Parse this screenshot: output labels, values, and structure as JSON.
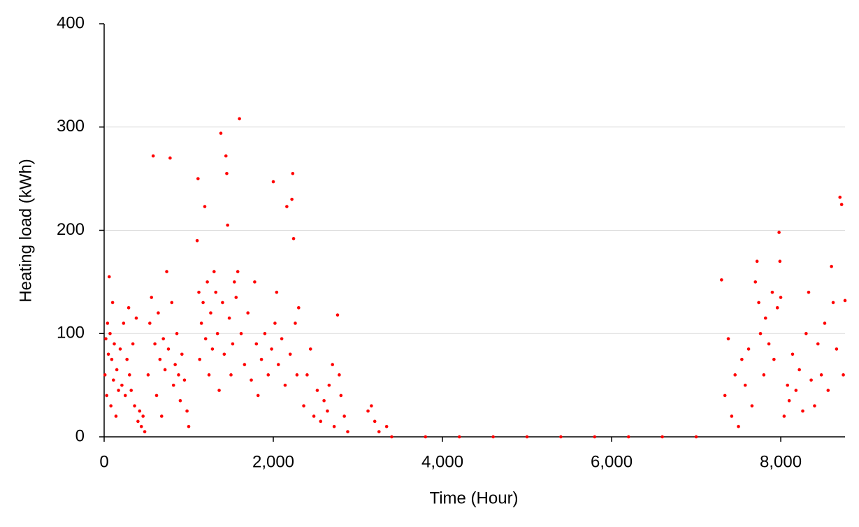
{
  "chart_data": {
    "type": "scatter",
    "x_label": "Time (Hour)",
    "y_label": "Heating load (kWh)",
    "xlim": [
      0,
      8760
    ],
    "xticks": [
      0,
      {
        "value": 2000,
        "label": "2,000"
      },
      {
        "value": 4000,
        "label": "4,000"
      },
      {
        "value": 6000,
        "label": "6,000"
      },
      {
        "value": 8000,
        "label": "8,000"
      }
    ],
    "ylim": [
      0,
      400
    ],
    "yticks": [
      0,
      100,
      200,
      300,
      400
    ],
    "grid": true,
    "color": "#ff0000",
    "x": [
      10,
      20,
      30,
      40,
      50,
      60,
      70,
      80,
      90,
      100,
      110,
      120,
      140,
      150,
      170,
      190,
      210,
      230,
      250,
      270,
      290,
      300,
      320,
      340,
      360,
      380,
      400,
      420,
      440,
      460,
      480,
      520,
      540,
      560,
      580,
      600,
      620,
      640,
      660,
      680,
      700,
      720,
      740,
      760,
      780,
      800,
      820,
      840,
      860,
      880,
      900,
      920,
      950,
      980,
      1000,
      1100,
      1110,
      1120,
      1130,
      1150,
      1170,
      1190,
      1200,
      1220,
      1240,
      1260,
      1280,
      1300,
      1320,
      1340,
      1360,
      1380,
      1400,
      1420,
      1440,
      1450,
      1460,
      1480,
      1500,
      1520,
      1540,
      1560,
      1580,
      1600,
      1620,
      1660,
      1700,
      1740,
      1780,
      1800,
      1820,
      1860,
      1900,
      1940,
      1980,
      2000,
      2020,
      2040,
      2060,
      2100,
      2140,
      2160,
      2200,
      2220,
      2230,
      2240,
      2260,
      2280,
      2300,
      2360,
      2400,
      2440,
      2480,
      2520,
      2560,
      2600,
      2640,
      2660,
      2700,
      2720,
      2760,
      2780,
      2800,
      2840,
      2880,
      3120,
      3160,
      3200,
      3250,
      3340,
      3400,
      3800,
      4200,
      4600,
      5000,
      5400,
      5800,
      6200,
      6600,
      7000,
      7300,
      7340,
      7380,
      7420,
      7460,
      7500,
      7540,
      7580,
      7620,
      7660,
      7700,
      7720,
      7740,
      7760,
      7800,
      7820,
      7860,
      7900,
      7920,
      7960,
      7980,
      7990,
      8000,
      8040,
      8080,
      8100,
      8140,
      8180,
      8220,
      8260,
      8300,
      8330,
      8360,
      8400,
      8440,
      8480,
      8520,
      8560,
      8600,
      8620,
      8660,
      8700,
      8720,
      8740,
      8760
    ],
    "values": [
      60,
      95,
      40,
      110,
      80,
      155,
      100,
      30,
      75,
      130,
      55,
      90,
      20,
      65,
      45,
      85,
      50,
      110,
      40,
      75,
      125,
      60,
      45,
      90,
      30,
      115,
      15,
      25,
      10,
      20,
      5,
      60,
      110,
      135,
      272,
      90,
      40,
      120,
      75,
      20,
      95,
      65,
      160,
      85,
      270,
      130,
      50,
      70,
      100,
      60,
      35,
      80,
      55,
      25,
      10,
      190,
      250,
      140,
      75,
      110,
      130,
      223,
      95,
      150,
      60,
      120,
      85,
      160,
      140,
      100,
      45,
      294,
      130,
      80,
      272,
      255,
      205,
      115,
      60,
      90,
      150,
      135,
      160,
      308,
      100,
      70,
      120,
      55,
      150,
      90,
      40,
      75,
      100,
      60,
      85,
      247,
      110,
      140,
      70,
      95,
      50,
      223,
      80,
      230,
      255,
      192,
      110,
      60,
      125,
      30,
      60,
      85,
      20,
      45,
      15,
      35,
      25,
      50,
      70,
      10,
      118,
      60,
      40,
      20,
      5,
      25,
      30,
      15,
      5,
      10,
      0,
      0,
      0,
      0,
      0,
      0,
      0,
      0,
      0,
      0,
      152,
      40,
      95,
      20,
      60,
      10,
      75,
      50,
      85,
      30,
      150,
      170,
      130,
      100,
      60,
      115,
      90,
      140,
      75,
      125,
      198,
      170,
      135,
      20,
      50,
      35,
      80,
      45,
      65,
      25,
      100,
      140,
      55,
      30,
      90,
      60,
      110,
      45,
      165,
      130,
      85,
      232,
      225,
      60,
      132
    ]
  }
}
